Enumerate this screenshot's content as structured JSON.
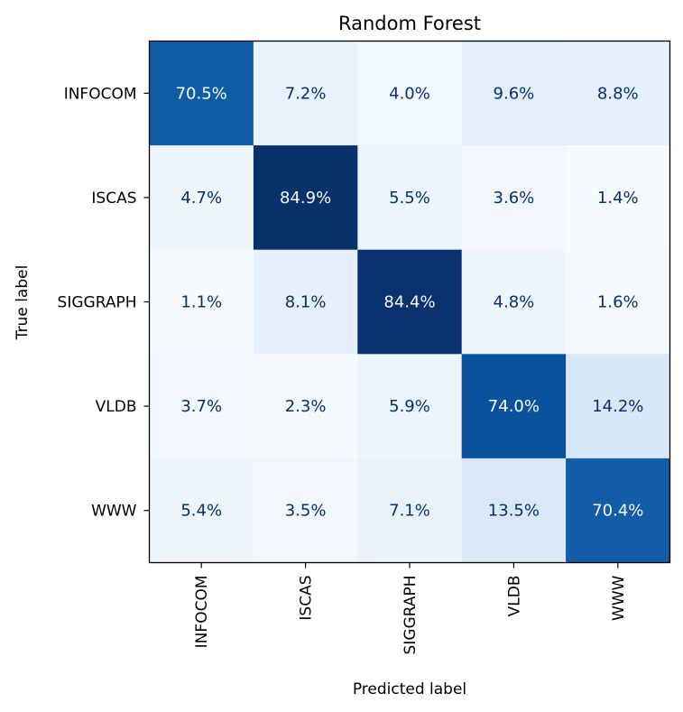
{
  "chart_data": {
    "type": "heatmap",
    "title": "Random Forest",
    "xlabel": "Predicted label",
    "ylabel": "True label",
    "x_categories": [
      "INFOCOM",
      "ISCAS",
      "SIGGRAPH",
      "VLDB",
      "WWW"
    ],
    "y_categories": [
      "INFOCOM",
      "ISCAS",
      "SIGGRAPH",
      "VLDB",
      "WWW"
    ],
    "values": [
      [
        70.5,
        7.2,
        4.0,
        9.6,
        8.8
      ],
      [
        4.7,
        84.9,
        5.5,
        3.6,
        1.4
      ],
      [
        1.1,
        8.1,
        84.4,
        4.8,
        1.6
      ],
      [
        3.7,
        2.3,
        5.9,
        74.0,
        14.2
      ],
      [
        5.4,
        3.5,
        7.1,
        13.5,
        70.4
      ]
    ],
    "value_labels": [
      [
        "70.5%",
        "7.2%",
        "4.0%",
        "9.6%",
        "8.8%"
      ],
      [
        "4.7%",
        "84.9%",
        "5.5%",
        "3.6%",
        "1.4%"
      ],
      [
        "1.1%",
        "8.1%",
        "84.4%",
        "4.8%",
        "1.6%"
      ],
      [
        "3.7%",
        "2.3%",
        "5.9%",
        "74.0%",
        "14.2%"
      ],
      [
        "5.4%",
        "3.5%",
        "7.1%",
        "13.5%",
        "70.4%"
      ]
    ],
    "colormap": "Blues",
    "grid": false,
    "legend": "none"
  }
}
